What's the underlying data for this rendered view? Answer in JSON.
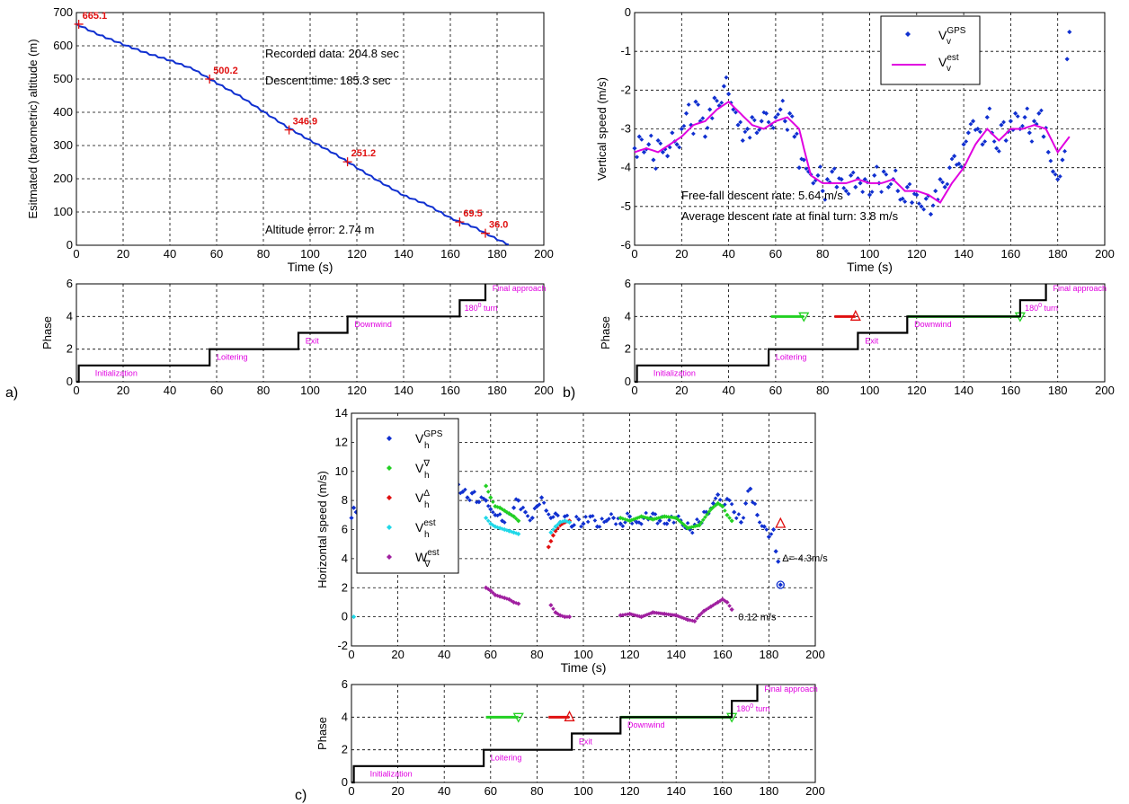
{
  "panel_labels": [
    "a)",
    "b)",
    "c)"
  ],
  "phase_axis": {
    "ylabel": "Phase",
    "xticks": [
      "0",
      "20",
      "40",
      "60",
      "80",
      "100",
      "120",
      "140",
      "160",
      "180",
      "200"
    ],
    "yticks": [
      "0",
      "2",
      "4",
      "6"
    ],
    "phase_labels": {
      "init": "Initialization",
      "loiter": "Loitering",
      "exit": "Exit",
      "down": "Downwind",
      "turn": "180",
      "turn_sup": "0",
      "turn_rest": " turn",
      "final": "Final approach"
    }
  },
  "chart_data": [
    {
      "id": "a-top",
      "type": "line",
      "xlabel": "Time (s)",
      "ylabel": "Esitmated (barometric) altitude (m)",
      "xlim": [
        0,
        200
      ],
      "ylim": [
        0,
        700
      ],
      "xticks": [
        "0",
        "20",
        "40",
        "60",
        "80",
        "100",
        "120",
        "140",
        "160",
        "180",
        "200"
      ],
      "yticks": [
        "0",
        "100",
        "200",
        "300",
        "400",
        "500",
        "600",
        "700"
      ],
      "series": [
        {
          "x": [
            0,
            10,
            20,
            30,
            40,
            50,
            57,
            60,
            70,
            80,
            90,
            100,
            110,
            116,
            120,
            130,
            140,
            150,
            160,
            164,
            170,
            175,
            180,
            185
          ],
          "y": [
            665,
            632,
            604,
            578,
            556,
            530,
            500,
            488,
            448,
            402,
            356,
            315,
            277,
            251,
            233,
            190,
            150,
            122,
            82,
            70,
            55,
            36,
            18,
            2
          ]
        }
      ],
      "markers": [
        {
          "x": 1,
          "y": 665,
          "label": "665.1"
        },
        {
          "x": 57,
          "y": 500,
          "label": "500.2"
        },
        {
          "x": 91,
          "y": 347,
          "label": "346.9"
        },
        {
          "x": 116,
          "y": 251,
          "label": "251.2"
        },
        {
          "x": 164,
          "y": 70,
          "label": "69.5"
        },
        {
          "x": 175,
          "y": 36,
          "label": "36.0"
        }
      ],
      "annotations": [
        "Recorded data: 204.8 sec",
        "Descent time: 185.3 sec",
        "Altitude error: 2.74 m"
      ],
      "grid": true
    },
    {
      "id": "b-top",
      "type": "scatter",
      "xlabel": "Time (s)",
      "ylabel": "Vertical speed (m/s)",
      "xlim": [
        0,
        200
      ],
      "ylim": [
        -6,
        0
      ],
      "xticks": [
        "0",
        "20",
        "40",
        "60",
        "80",
        "100",
        "120",
        "140",
        "160",
        "180",
        "200"
      ],
      "yticks": [
        "0",
        "-1",
        "-2",
        "-3",
        "-4",
        "-5",
        "-6"
      ],
      "legend_position": "top-right",
      "series": [
        {
          "name": "V_v^GPS",
          "kind": "points",
          "x": [
            0,
            2,
            4,
            6,
            8,
            10,
            12,
            14,
            16,
            18,
            20,
            22,
            24,
            26,
            28,
            30,
            32,
            34,
            36,
            38,
            40,
            42,
            44,
            46,
            48,
            50,
            52,
            54,
            56,
            58,
            60,
            62,
            64,
            66,
            68,
            70,
            72,
            74,
            76,
            78,
            80,
            82,
            84,
            86,
            88,
            90,
            92,
            94,
            96,
            98,
            100,
            102,
            104,
            106,
            108,
            110,
            112,
            114,
            116,
            118,
            120,
            122,
            124,
            126,
            128,
            130,
            132,
            134,
            136,
            138,
            140,
            142,
            144,
            146,
            148,
            150,
            152,
            154,
            156,
            158,
            160,
            162,
            164,
            166,
            168,
            170,
            172,
            174,
            176,
            178,
            180,
            182,
            184,
            185
          ],
          "y": [
            -3.5,
            -3.2,
            -3.6,
            -3.4,
            -3.8,
            -3.3,
            -3.6,
            -3.7,
            -3.1,
            -3.4,
            -3.0,
            -2.6,
            -2.9,
            -2.3,
            -2.8,
            -3.2,
            -2.5,
            -2.2,
            -2.4,
            -1.9,
            -2.1,
            -2.5,
            -2.9,
            -3.3,
            -3.0,
            -2.7,
            -3.1,
            -2.8,
            -2.6,
            -2.9,
            -2.7,
            -2.5,
            -2.8,
            -2.6,
            -3.2,
            -4.0,
            -3.8,
            -4.1,
            -4.4,
            -4.2,
            -4.6,
            -4.3,
            -4.1,
            -4.5,
            -4.3,
            -4.6,
            -4.2,
            -4.5,
            -4.4,
            -4.3,
            -4.7,
            -4.2,
            -4.4,
            -4.1,
            -4.5,
            -4.3,
            -4.6,
            -4.8,
            -4.5,
            -4.9,
            -4.7,
            -5.0,
            -4.8,
            -5.2,
            -4.6,
            -4.3,
            -4.5,
            -4.0,
            -3.7,
            -3.9,
            -3.4,
            -3.1,
            -2.8,
            -3.0,
            -3.4,
            -2.7,
            -3.1,
            -3.5,
            -2.9,
            -3.3,
            -2.8,
            -2.6,
            -3.0,
            -2.7,
            -3.1,
            -2.8,
            -2.6,
            -3.2,
            -3.6,
            -4.1,
            -4.3,
            -3.8,
            -1.2,
            -0.5
          ]
        },
        {
          "name": "V_v^est",
          "kind": "line",
          "x": [
            0,
            5,
            10,
            15,
            20,
            25,
            30,
            35,
            40,
            45,
            50,
            55,
            60,
            65,
            70,
            72,
            75,
            80,
            85,
            90,
            95,
            100,
            105,
            110,
            115,
            120,
            125,
            130,
            135,
            140,
            145,
            150,
            155,
            160,
            165,
            170,
            175,
            180,
            185
          ],
          "y": [
            -3.6,
            -3.5,
            -3.6,
            -3.4,
            -3.2,
            -2.9,
            -2.8,
            -2.5,
            -2.3,
            -2.6,
            -2.9,
            -3.0,
            -2.8,
            -2.7,
            -3.0,
            -3.5,
            -4.2,
            -4.4,
            -4.4,
            -4.4,
            -4.3,
            -4.4,
            -4.4,
            -4.3,
            -4.6,
            -4.6,
            -4.7,
            -4.9,
            -4.4,
            -4.0,
            -3.4,
            -3.0,
            -3.3,
            -3.0,
            -3.0,
            -2.9,
            -3.0,
            -3.6,
            -3.2
          ]
        }
      ],
      "annotations": [
        "Free-fall descent rate: 5.64 m/s",
        "Average descent rate at final turn: 3.8 m/s"
      ],
      "grid": true
    },
    {
      "id": "c-top",
      "type": "scatter",
      "xlabel": "Time (s)",
      "ylabel": "Horizontal speed (m/s)",
      "xlim": [
        0,
        200
      ],
      "ylim": [
        -2,
        14
      ],
      "xticks": [
        "0",
        "20",
        "40",
        "60",
        "80",
        "100",
        "120",
        "140",
        "160",
        "180",
        "200"
      ],
      "yticks": [
        "-2",
        "0",
        "2",
        "4",
        "6",
        "8",
        "10",
        "12",
        "14"
      ],
      "legend_position": "top-left",
      "series": [
        {
          "name": "V_h^GPS",
          "color": "#1030d0",
          "x": [
            0,
            1,
            2,
            3,
            5,
            8,
            10,
            15,
            20,
            25,
            30,
            35,
            40,
            44,
            46,
            48,
            50,
            52,
            55,
            58,
            60,
            62,
            65,
            68,
            70,
            72,
            75,
            78,
            80,
            82,
            84,
            86,
            88,
            90,
            92,
            95,
            98,
            100,
            103,
            106,
            110,
            113,
            116,
            120,
            123,
            126,
            130,
            133,
            136,
            140,
            143,
            146,
            150,
            153,
            156,
            158,
            160,
            162,
            165,
            168,
            170,
            172,
            175,
            178,
            180,
            182,
            183,
            184,
            185
          ],
          "y": [
            6.8,
            7.5,
            7.2,
            8.0,
            7.6,
            8.2,
            7.8,
            8.1,
            7.7,
            8.3,
            7.9,
            8.0,
            7.6,
            8.4,
            9.1,
            8.6,
            8.2,
            8.5,
            7.9,
            8.0,
            7.4,
            7.0,
            6.6,
            7.1,
            7.5,
            8.0,
            7.2,
            6.8,
            7.6,
            8.2,
            7.3,
            6.8,
            7.1,
            6.5,
            6.9,
            6.2,
            6.7,
            6.4,
            6.9,
            6.2,
            6.6,
            6.8,
            6.4,
            6.9,
            6.5,
            6.8,
            7.1,
            6.6,
            6.4,
            6.8,
            6.3,
            6.0,
            6.5,
            7.2,
            7.8,
            8.4,
            7.6,
            8.1,
            7.2,
            6.5,
            7.8,
            8.8,
            7.0,
            6.2,
            5.5,
            6.0,
            4.5,
            3.8,
            2.2
          ]
        },
        {
          "name": "V_h^∇",
          "color": "#22d022",
          "x": [
            58,
            60,
            62,
            64,
            66,
            68,
            70,
            72,
            116,
            120,
            125,
            130,
            135,
            140,
            145,
            150,
            155,
            158,
            160,
            162,
            164
          ],
          "y": [
            9.0,
            8.2,
            7.6,
            7.5,
            7.3,
            7.1,
            6.9,
            6.6,
            6.8,
            6.6,
            6.9,
            6.7,
            6.9,
            6.8,
            6.1,
            6.3,
            7.4,
            7.8,
            7.6,
            7.0,
            6.6
          ]
        },
        {
          "name": "V_h^Δ",
          "color": "#e01010",
          "x": [
            85,
            86,
            87,
            88,
            90,
            92,
            94
          ],
          "y": [
            4.8,
            5.2,
            5.6,
            5.9,
            6.3,
            6.5,
            6.6
          ]
        },
        {
          "name": "V_h^est",
          "color": "#20d8e8",
          "x": [
            1,
            58,
            60,
            62,
            64,
            66,
            68,
            70,
            72,
            86,
            88,
            90,
            92,
            94
          ],
          "y": [
            0.0,
            6.8,
            6.4,
            6.2,
            6.1,
            6.0,
            5.9,
            5.8,
            5.7,
            5.8,
            6.2,
            6.5,
            6.6,
            6.5
          ]
        },
        {
          "name": "W_∇^est",
          "color": "#a020a0",
          "x": [
            58,
            60,
            62,
            64,
            66,
            68,
            70,
            72,
            86,
            88,
            90,
            92,
            94,
            116,
            120,
            125,
            130,
            135,
            140,
            145,
            148,
            150,
            152,
            155,
            158,
            160,
            162,
            164
          ],
          "y": [
            2.0,
            1.8,
            1.5,
            1.4,
            1.3,
            1.2,
            1.0,
            0.9,
            0.8,
            0.3,
            0.1,
            0.0,
            0.0,
            0.1,
            0.2,
            0.0,
            0.3,
            0.2,
            0.1,
            -0.2,
            -0.3,
            0.1,
            0.4,
            0.7,
            1.0,
            1.2,
            1.0,
            0.5
          ]
        }
      ],
      "annotations": [
        "Δ=-4.3m/s",
        "0.12 m/s"
      ],
      "grid": true
    }
  ],
  "phase_chart_data": {
    "type": "line",
    "xlim": [
      0,
      200
    ],
    "ylim": [
      0,
      6
    ],
    "x": [
      0,
      1,
      1,
      57,
      57,
      95,
      95,
      116,
      116,
      164,
      164,
      175,
      175
    ],
    "y": [
      0,
      0,
      1,
      1,
      2,
      2,
      3,
      3,
      4,
      4,
      5,
      5,
      6
    ],
    "markers": {
      "green1": {
        "x": [
          58,
          72
        ],
        "y": 4
      },
      "red": {
        "x": [
          85,
          94
        ],
        "y": 4
      },
      "green2": {
        "x": [
          116,
          164
        ],
        "y": 4
      }
    }
  },
  "colors": {
    "line": "#1030d0",
    "red": "#e01010",
    "magenta": "#e000e0",
    "green": "#22d022",
    "black": "#000000"
  }
}
